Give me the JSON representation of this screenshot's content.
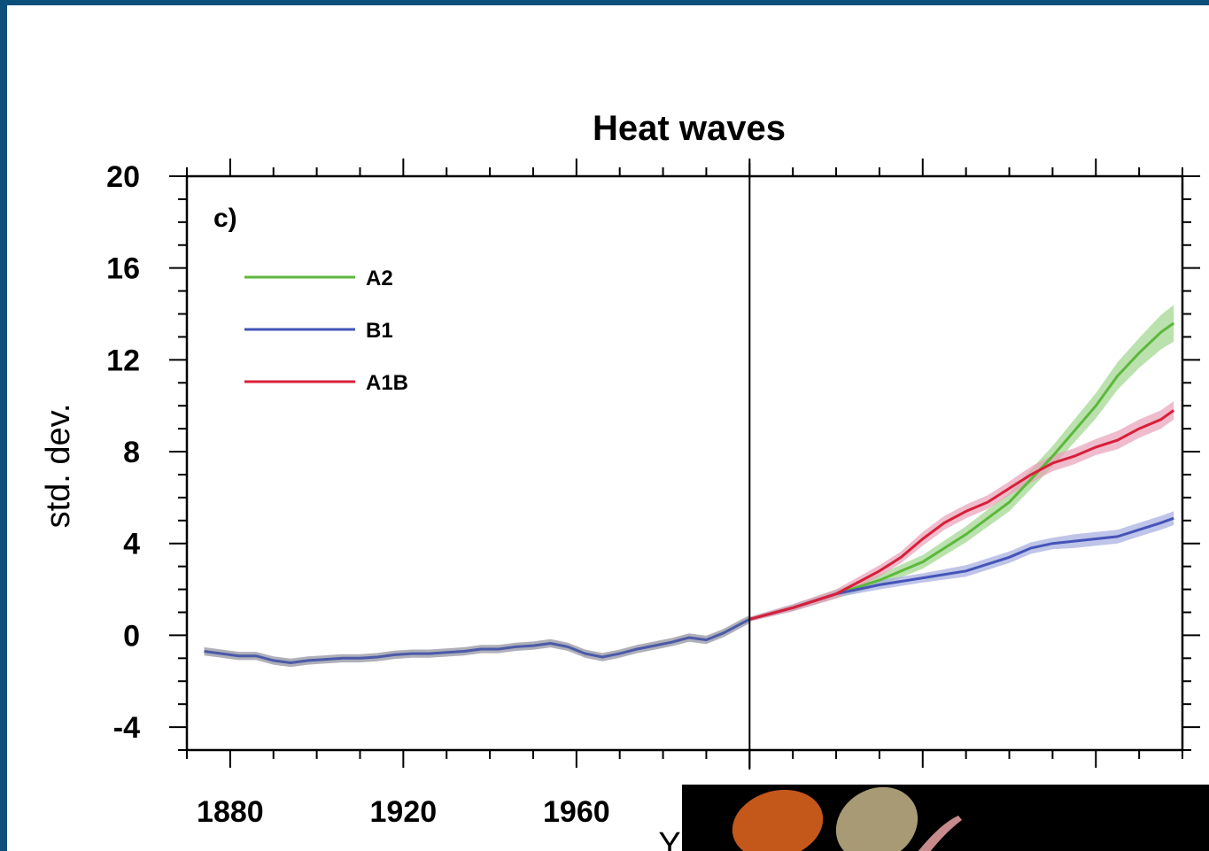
{
  "chart_data": {
    "type": "line",
    "title": "Heat waves",
    "panel_label": "c)",
    "ylabel": "std. dev.",
    "xlabel": "Y",
    "xlim": [
      1870,
      2100
    ],
    "ylim": [
      -5,
      20
    ],
    "x_ticks": [
      1880,
      1920,
      1960
    ],
    "y_ticks": [
      -4,
      0,
      4,
      8,
      12,
      16,
      20
    ],
    "x_tick_labels": [
      "1880",
      "1920",
      "1960"
    ],
    "y_tick_labels": [
      "-4",
      "0",
      "4",
      "8",
      "12",
      "16",
      "20"
    ],
    "reference_line_x": 2000,
    "legend_placement": "top-left",
    "historical": {
      "color": "#4b5aa8",
      "band_color": "#6d6d80",
      "x": [
        1874,
        1878,
        1882,
        1886,
        1890,
        1894,
        1898,
        1902,
        1906,
        1910,
        1914,
        1918,
        1922,
        1926,
        1930,
        1934,
        1938,
        1942,
        1946,
        1950,
        1954,
        1958,
        1962,
        1966,
        1970,
        1974,
        1978,
        1982,
        1986,
        1990,
        1994,
        1998,
        2000
      ],
      "y": [
        -0.7,
        -0.8,
        -0.9,
        -0.9,
        -1.1,
        -1.2,
        -1.1,
        -1.05,
        -1.0,
        -1.0,
        -0.95,
        -0.85,
        -0.8,
        -0.8,
        -0.75,
        -0.7,
        -0.6,
        -0.6,
        -0.5,
        -0.45,
        -0.35,
        -0.5,
        -0.8,
        -0.95,
        -0.8,
        -0.6,
        -0.45,
        -0.3,
        -0.1,
        -0.2,
        0.1,
        0.5,
        0.7
      ]
    },
    "series": [
      {
        "name": "A2",
        "color": "#5cb83c",
        "band_color": "#9ed68c",
        "x": [
          2000,
          2010,
          2020,
          2030,
          2040,
          2050,
          2060,
          2070,
          2080,
          2085,
          2090,
          2095,
          2098
        ],
        "y": [
          0.7,
          1.2,
          1.8,
          2.4,
          3.2,
          4.4,
          5.8,
          7.8,
          10.0,
          11.3,
          12.3,
          13.2,
          13.6
        ],
        "band": [
          0.1,
          0.15,
          0.2,
          0.25,
          0.3,
          0.35,
          0.4,
          0.45,
          0.55,
          0.6,
          0.65,
          0.75,
          0.8
        ]
      },
      {
        "name": "B1",
        "color": "#4454b8",
        "band_color": "#a4abe0",
        "x": [
          2000,
          2010,
          2020,
          2030,
          2040,
          2050,
          2060,
          2065,
          2070,
          2075,
          2080,
          2085,
          2090,
          2095,
          2098
        ],
        "y": [
          0.7,
          1.2,
          1.8,
          2.2,
          2.5,
          2.8,
          3.4,
          3.8,
          4.0,
          4.1,
          4.2,
          4.3,
          4.6,
          4.9,
          5.1
        ],
        "band": [
          0.1,
          0.15,
          0.15,
          0.2,
          0.2,
          0.25,
          0.25,
          0.25,
          0.25,
          0.3,
          0.3,
          0.3,
          0.3,
          0.3,
          0.3
        ]
      },
      {
        "name": "A1B",
        "color": "#d81f3a",
        "band_color": "#e8a0b8",
        "x": [
          2000,
          2010,
          2020,
          2030,
          2035,
          2040,
          2045,
          2050,
          2055,
          2060,
          2065,
          2070,
          2075,
          2080,
          2085,
          2090,
          2095,
          2098
        ],
        "y": [
          0.7,
          1.2,
          1.8,
          2.8,
          3.4,
          4.2,
          4.9,
          5.4,
          5.8,
          6.4,
          7.0,
          7.5,
          7.8,
          8.2,
          8.5,
          9.0,
          9.4,
          9.8
        ],
        "band": [
          0.1,
          0.15,
          0.2,
          0.25,
          0.25,
          0.3,
          0.3,
          0.3,
          0.3,
          0.3,
          0.35,
          0.35,
          0.35,
          0.35,
          0.4,
          0.4,
          0.4,
          0.4
        ]
      }
    ]
  },
  "overlay": {
    "background": "#000000",
    "shape_colors": [
      "#c4581b",
      "#a89a74",
      "#c78b8b"
    ]
  }
}
